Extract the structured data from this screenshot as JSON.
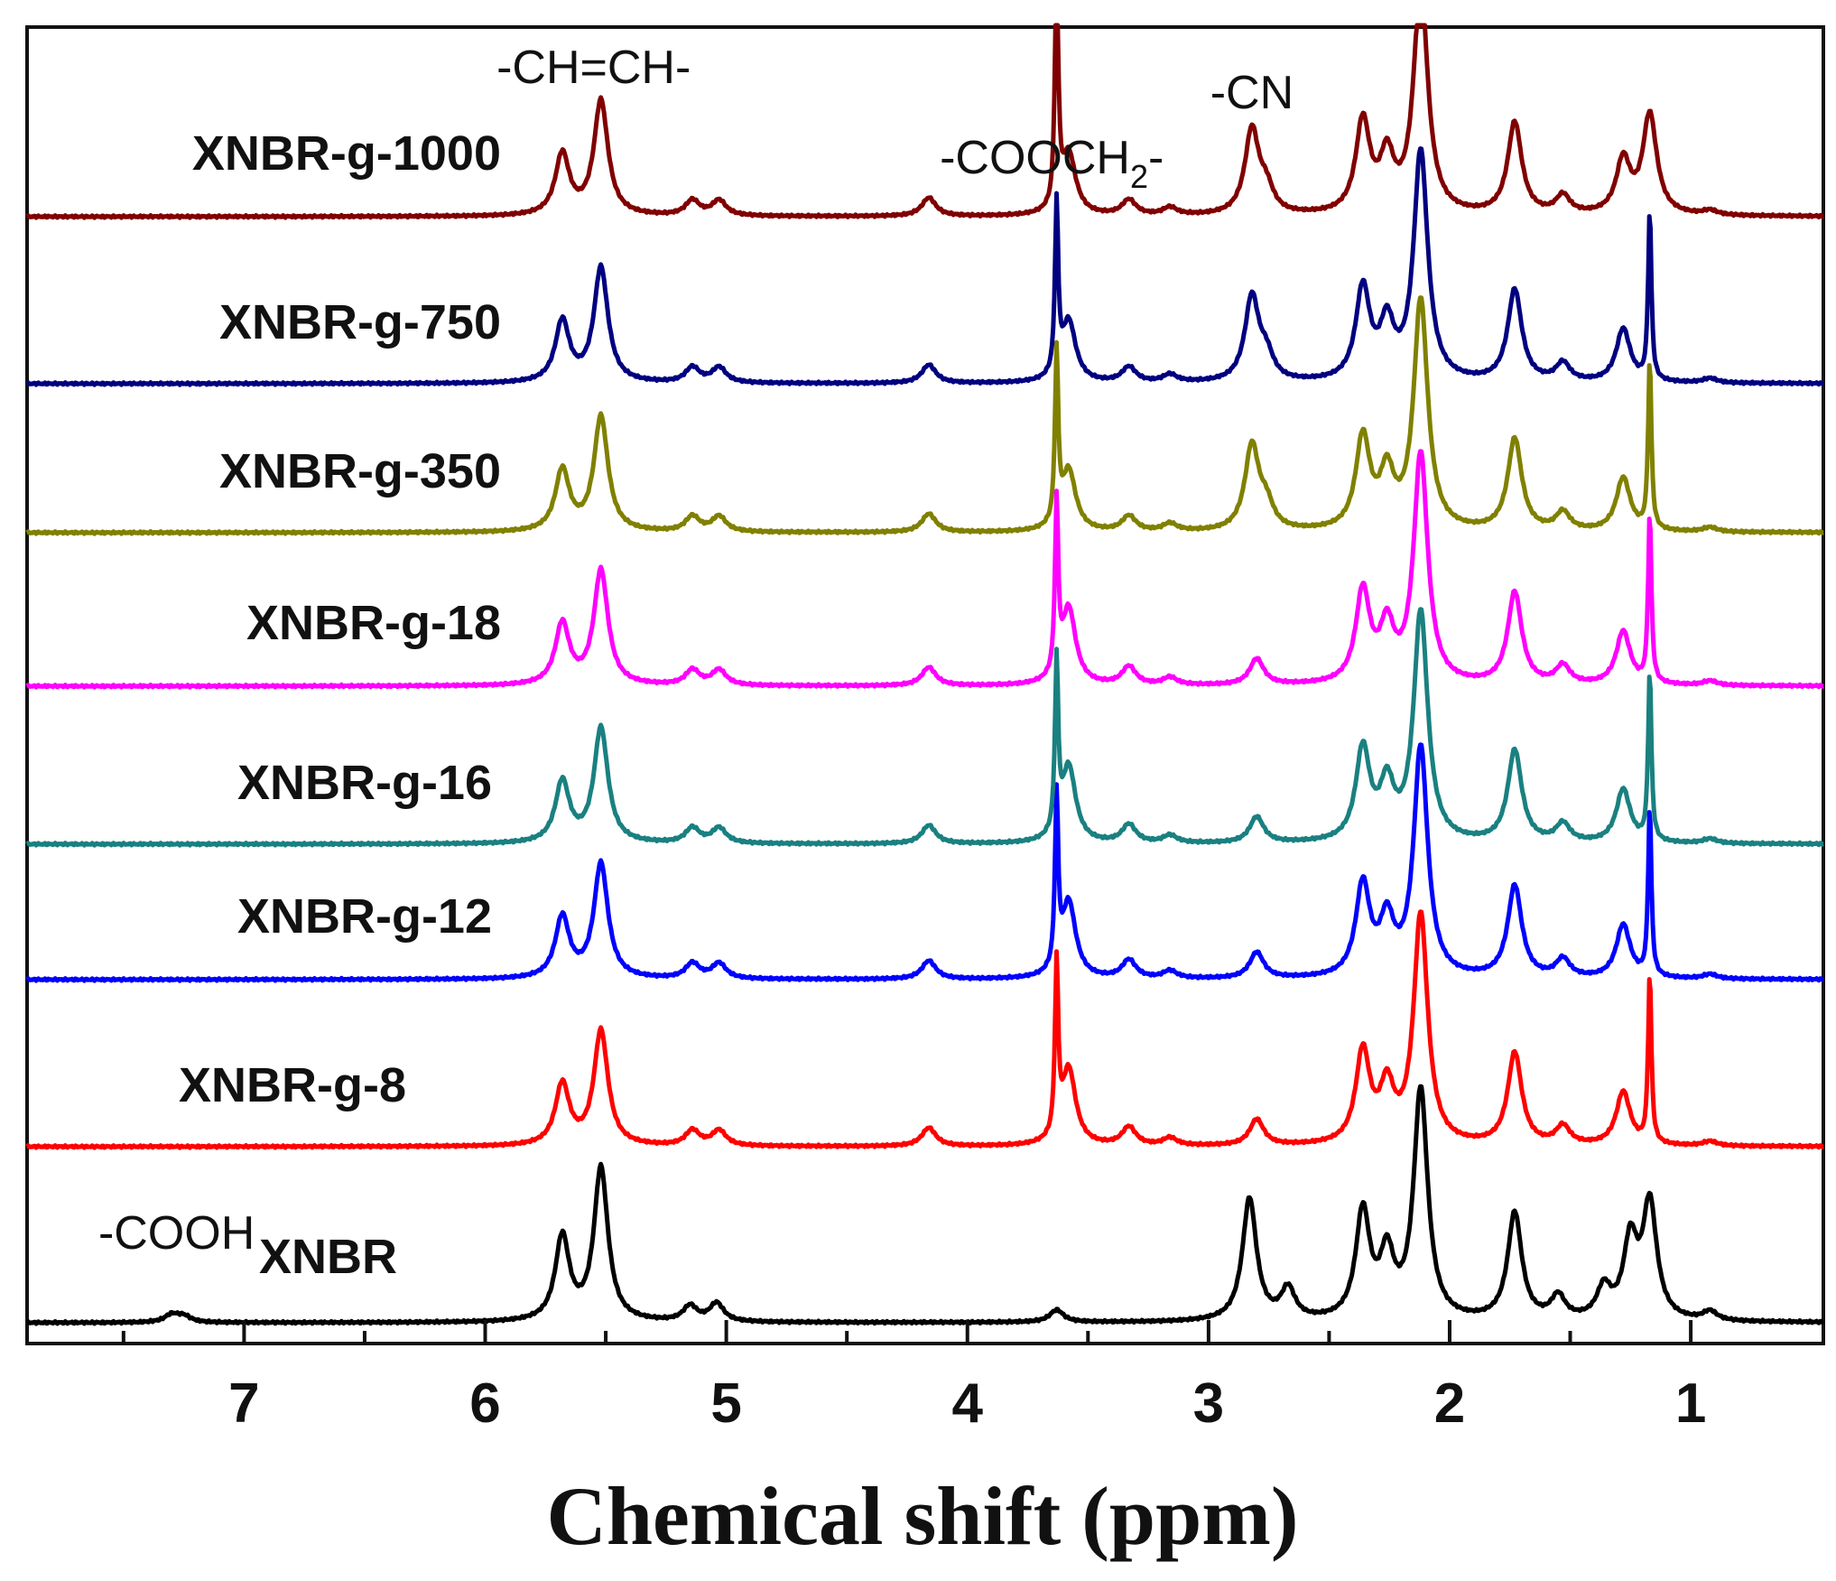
{
  "chart_data": {
    "type": "line",
    "title": "",
    "xlabel": "Chemical shift (ppm)",
    "ylabel": "",
    "x_reversed": true,
    "xlim": [
      7.9,
      0.45
    ],
    "xticks": [
      "7",
      "6",
      "5",
      "4",
      "3",
      "2",
      "1"
    ],
    "x_minor_ticks": [
      7.5,
      6.5,
      5.5,
      4.5,
      3.5,
      2.5,
      1.5
    ],
    "grid": false,
    "series": [
      {
        "name": "XNBR",
        "color": "#000000",
        "peaks": [
          [
            7.3,
            0.05
          ],
          [
            7.25,
            0.04
          ],
          [
            5.68,
            0.55
          ],
          [
            5.52,
            1.0
          ],
          [
            5.15,
            0.1
          ],
          [
            5.04,
            0.12
          ],
          [
            3.63,
            0.08
          ],
          [
            2.83,
            0.8
          ],
          [
            2.67,
            0.2
          ],
          [
            2.36,
            0.7
          ],
          [
            2.26,
            0.4
          ],
          [
            2.12,
            1.5
          ],
          [
            1.73,
            0.7
          ],
          [
            1.55,
            0.15
          ],
          [
            1.36,
            0.2
          ],
          [
            1.25,
            0.5
          ],
          [
            1.17,
            0.75
          ],
          [
            0.92,
            0.06
          ]
        ]
      },
      {
        "name": "XNBR-g-8",
        "color": "#ff0000",
        "peaks": [
          [
            5.68,
            0.4
          ],
          [
            5.52,
            0.75
          ],
          [
            5.14,
            0.1
          ],
          [
            5.03,
            0.1
          ],
          [
            4.16,
            0.12
          ],
          [
            3.63,
            1.1
          ],
          [
            3.58,
            0.5
          ],
          [
            3.33,
            0.12
          ],
          [
            3.16,
            0.05
          ],
          [
            2.8,
            0.17
          ],
          [
            2.36,
            0.6
          ],
          [
            2.26,
            0.35
          ],
          [
            2.12,
            1.5
          ],
          [
            1.73,
            0.6
          ],
          [
            1.53,
            0.12
          ],
          [
            1.28,
            0.35
          ],
          [
            1.17,
            1.1
          ],
          [
            0.92,
            0.03
          ]
        ]
      },
      {
        "name": "XNBR-g-12",
        "color": "#0000ff",
        "peaks": [
          [
            5.68,
            0.4
          ],
          [
            5.52,
            0.75
          ],
          [
            5.14,
            0.1
          ],
          [
            5.03,
            0.1
          ],
          [
            4.16,
            0.12
          ],
          [
            3.63,
            1.1
          ],
          [
            3.58,
            0.5
          ],
          [
            3.33,
            0.12
          ],
          [
            3.16,
            0.05
          ],
          [
            2.8,
            0.17
          ],
          [
            2.36,
            0.6
          ],
          [
            2.26,
            0.35
          ],
          [
            2.12,
            1.5
          ],
          [
            1.73,
            0.6
          ],
          [
            1.53,
            0.12
          ],
          [
            1.28,
            0.35
          ],
          [
            1.17,
            1.1
          ],
          [
            0.92,
            0.03
          ]
        ]
      },
      {
        "name": "XNBR-g-16",
        "color": "#1a8080",
        "peaks": [
          [
            5.68,
            0.4
          ],
          [
            5.52,
            0.75
          ],
          [
            5.14,
            0.1
          ],
          [
            5.03,
            0.1
          ],
          [
            4.16,
            0.12
          ],
          [
            3.63,
            1.1
          ],
          [
            3.58,
            0.5
          ],
          [
            3.33,
            0.12
          ],
          [
            3.16,
            0.05
          ],
          [
            2.8,
            0.17
          ],
          [
            2.36,
            0.6
          ],
          [
            2.26,
            0.35
          ],
          [
            2.12,
            1.5
          ],
          [
            1.73,
            0.6
          ],
          [
            1.53,
            0.12
          ],
          [
            1.28,
            0.35
          ],
          [
            1.17,
            1.1
          ],
          [
            0.92,
            0.03
          ]
        ]
      },
      {
        "name": "XNBR-g-18",
        "color": "#ff00ff",
        "peaks": [
          [
            5.68,
            0.4
          ],
          [
            5.52,
            0.75
          ],
          [
            5.14,
            0.1
          ],
          [
            5.03,
            0.1
          ],
          [
            4.16,
            0.12
          ],
          [
            3.63,
            1.1
          ],
          [
            3.58,
            0.5
          ],
          [
            3.33,
            0.12
          ],
          [
            3.16,
            0.05
          ],
          [
            2.8,
            0.17
          ],
          [
            2.36,
            0.6
          ],
          [
            2.26,
            0.35
          ],
          [
            2.12,
            1.5
          ],
          [
            1.73,
            0.6
          ],
          [
            1.53,
            0.12
          ],
          [
            1.28,
            0.35
          ],
          [
            1.17,
            1.1
          ],
          [
            0.92,
            0.03
          ]
        ]
      },
      {
        "name": "XNBR-g-350",
        "color": "#808000",
        "peaks": [
          [
            5.68,
            0.4
          ],
          [
            5.52,
            0.75
          ],
          [
            5.14,
            0.1
          ],
          [
            5.03,
            0.1
          ],
          [
            4.16,
            0.12
          ],
          [
            3.63,
            1.1
          ],
          [
            3.58,
            0.4
          ],
          [
            3.33,
            0.1
          ],
          [
            3.16,
            0.05
          ],
          [
            2.82,
            0.55
          ],
          [
            2.76,
            0.15
          ],
          [
            2.36,
            0.6
          ],
          [
            2.26,
            0.35
          ],
          [
            2.12,
            1.5
          ],
          [
            1.73,
            0.6
          ],
          [
            1.53,
            0.12
          ],
          [
            1.28,
            0.35
          ],
          [
            1.17,
            1.1
          ],
          [
            0.92,
            0.03
          ]
        ]
      },
      {
        "name": "XNBR-g-750",
        "color": "#000080",
        "peaks": [
          [
            5.68,
            0.4
          ],
          [
            5.52,
            0.75
          ],
          [
            5.14,
            0.1
          ],
          [
            5.03,
            0.1
          ],
          [
            4.16,
            0.12
          ],
          [
            3.63,
            1.1
          ],
          [
            3.58,
            0.4
          ],
          [
            3.33,
            0.1
          ],
          [
            3.16,
            0.05
          ],
          [
            2.82,
            0.55
          ],
          [
            2.76,
            0.15
          ],
          [
            2.36,
            0.6
          ],
          [
            2.26,
            0.35
          ],
          [
            2.12,
            1.5
          ],
          [
            1.73,
            0.6
          ],
          [
            1.53,
            0.12
          ],
          [
            1.28,
            0.35
          ],
          [
            1.17,
            1.1
          ],
          [
            0.92,
            0.03
          ]
        ]
      },
      {
        "name": "XNBR-g-1000",
        "color": "#800000",
        "peaks": [
          [
            5.68,
            0.4
          ],
          [
            5.52,
            0.75
          ],
          [
            5.14,
            0.1
          ],
          [
            5.03,
            0.1
          ],
          [
            4.16,
            0.12
          ],
          [
            3.63,
            1.6
          ],
          [
            3.58,
            0.4
          ],
          [
            3.33,
            0.1
          ],
          [
            3.16,
            0.05
          ],
          [
            2.82,
            0.55
          ],
          [
            2.76,
            0.15
          ],
          [
            2.36,
            0.6
          ],
          [
            2.26,
            0.35
          ],
          [
            2.12,
            1.5
          ],
          [
            1.73,
            0.6
          ],
          [
            1.53,
            0.12
          ],
          [
            1.28,
            0.35
          ],
          [
            1.17,
            0.65
          ],
          [
            0.92,
            0.03
          ]
        ]
      }
    ],
    "annotations": [
      {
        "text": "-CH=CH-",
        "ppm": 5.55,
        "color": "#000000"
      },
      {
        "text": "-COOCH",
        "subscript": "2",
        "suffix": "-",
        "ppm": 3.65,
        "color": "#000000"
      },
      {
        "text": "-CN",
        "ppm": 2.82,
        "color": "#000000"
      },
      {
        "text": "-COOH",
        "ppm": 7.28,
        "color": "#ff0000"
      }
    ]
  }
}
